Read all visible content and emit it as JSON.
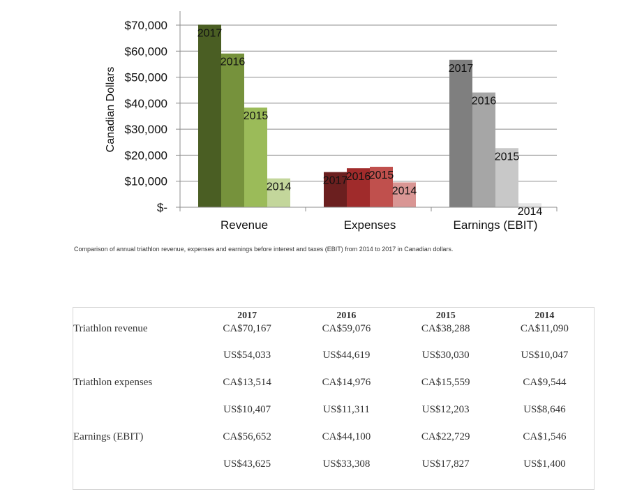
{
  "chart_data": {
    "type": "bar",
    "categories": [
      "Revenue",
      "Expenses",
      "Earnings (EBIT)"
    ],
    "series": [
      {
        "name": "2017",
        "values": [
          70167,
          13514,
          56652
        ]
      },
      {
        "name": "2016",
        "values": [
          59076,
          14976,
          44100
        ]
      },
      {
        "name": "2015",
        "values": [
          38288,
          15559,
          22729
        ]
      },
      {
        "name": "2014",
        "values": [
          11090,
          9544,
          1546
        ]
      }
    ],
    "ylabel": "Canadian Dollars",
    "ylim": [
      0,
      70000
    ],
    "yticks": [
      0,
      10000,
      20000,
      30000,
      40000,
      50000,
      60000,
      70000
    ],
    "ytick_labels": [
      "$-",
      "$10,000",
      "$20,000",
      "$30,000",
      "$40,000",
      "$50,000",
      "$60,000",
      "$70,000"
    ],
    "grid": true,
    "bar_labels": "series names shown above each bar",
    "colors": {
      "Revenue": [
        "#4a5e23",
        "#76923c",
        "#9bbb59",
        "#c3d69b"
      ],
      "Expenses": [
        "#6b1f1f",
        "#a02b2b",
        "#c0504d",
        "#d99694"
      ],
      "Earnings (EBIT)": [
        "#7f7f7f",
        "#a6a6a6",
        "#c8c8c8",
        "#e6e6e6"
      ]
    }
  },
  "caption": "Comparison of annual triathlon revenue, expenses and earnings before interest and taxes (EBIT) from 2014 to 2017 in Canadian dollars.",
  "table": {
    "headers": [
      "",
      "2017",
      "2016",
      "2015",
      "2014"
    ],
    "rows": [
      {
        "label": "Triathlon revenue",
        "cells": [
          "CA$70,167",
          "CA$59,076",
          "CA$38,288",
          "CA$11,090"
        ]
      },
      {
        "label": "",
        "cells": [
          "US$54,033",
          "US$44,619",
          "US$30,030",
          "US$10,047"
        ]
      },
      {
        "label": "Triathlon expenses",
        "cells": [
          "CA$13,514",
          "CA$14,976",
          "CA$15,559",
          "CA$9,544"
        ]
      },
      {
        "label": "",
        "cells": [
          "US$10,407",
          "US$11,311",
          "US$12,203",
          "US$8,646"
        ]
      },
      {
        "label": "Earnings (EBIT)",
        "cells": [
          "CA$56,652",
          "CA$44,100",
          "CA$22,729",
          "CA$1,546"
        ]
      },
      {
        "label": "",
        "cells": [
          "US$43,625",
          "US$33,308",
          "US$17,827",
          "US$1,400"
        ]
      }
    ]
  }
}
